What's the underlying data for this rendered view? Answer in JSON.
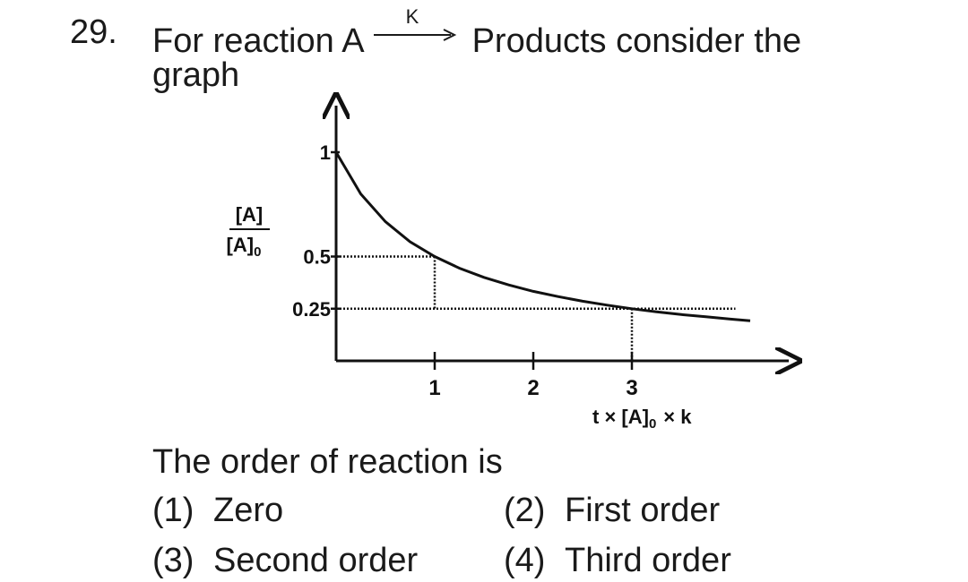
{
  "question": {
    "number": "29.",
    "line1_before": "For reaction A",
    "arrow_label": "K",
    "line1_after": "Products consider the",
    "line2": "graph",
    "prompt": "The order of reaction is"
  },
  "options": [
    {
      "num": "(1)",
      "text": "Zero"
    },
    {
      "num": "(2)",
      "text": "First order"
    },
    {
      "num": "(3)",
      "text": "Second order"
    },
    {
      "num": "(4)",
      "text": "Third order"
    }
  ],
  "chart_data": {
    "type": "line",
    "y_label_numerator": "[A]",
    "y_label_denominator": "[A]",
    "y_label_denominator_sub": "0",
    "x_label_prefix": "t × [A]",
    "x_label_sub": "0",
    "x_label_suffix": "× k",
    "y_tick_labels": [
      "1",
      "0.5",
      "0.25"
    ],
    "x_tick_labels": [
      "1",
      "2",
      "3"
    ],
    "y_ticks": [
      1,
      0.5,
      0.25
    ],
    "x_ticks": [
      1,
      2,
      3
    ],
    "xlim": [
      0,
      4.2
    ],
    "ylim": [
      0,
      1
    ],
    "series": [
      {
        "x": [
          0,
          0.25,
          0.5,
          0.75,
          1,
          1.25,
          1.5,
          1.75,
          2,
          2.25,
          2.5,
          2.75,
          3,
          3.25,
          3.5,
          3.75,
          4,
          4.2
        ],
        "values": [
          1,
          0.8,
          0.667,
          0.571,
          0.5,
          0.444,
          0.4,
          0.364,
          0.333,
          0.308,
          0.286,
          0.267,
          0.25,
          0.235,
          0.222,
          0.211,
          0.2,
          0.192
        ]
      }
    ],
    "guides": [
      {
        "x": 1,
        "y": 0.5
      },
      {
        "x": 3,
        "y": 0.25
      }
    ],
    "grid": false
  }
}
